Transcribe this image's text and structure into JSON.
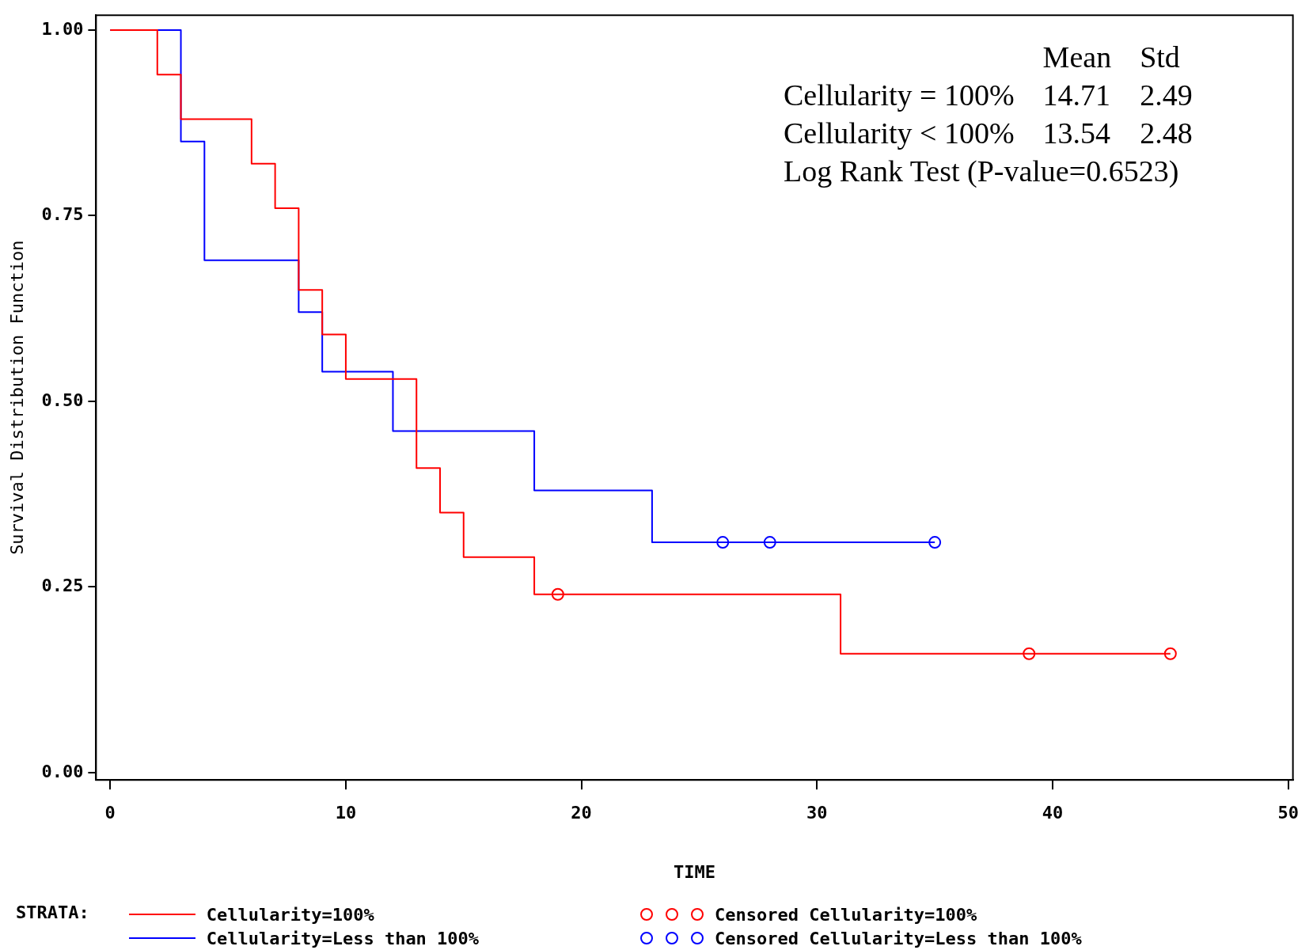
{
  "chart_data": {
    "type": "step",
    "xlabel": "TIME",
    "ylabel": "Survival Distribution Function",
    "legend_title": "STRATA:",
    "legend": "bottom",
    "grid": false,
    "xlim": [
      -0.6,
      50.2
    ],
    "xticks": [
      0,
      10,
      20,
      30,
      40,
      50
    ],
    "ylim": [
      -0.01,
      1.02
    ],
    "yticks": [
      {
        "value": 0,
        "label": "0.00"
      },
      {
        "value": 0.25,
        "label": "0.25"
      },
      {
        "value": 0.5,
        "label": "0.50"
      },
      {
        "value": 0.75,
        "label": "0.75"
      },
      {
        "value": 1,
        "label": "1.00"
      }
    ],
    "annotations": [
      "Mean",
      "Std",
      "Cellularity = 100%",
      "14.71",
      "2.49",
      "Cellularity < 100%",
      "13.54",
      "2.48",
      "Log Rank Test (P-value=0.6523)"
    ],
    "series": [
      {
        "name": "Cellularity=100%",
        "color": "#ff0000",
        "marker": "none",
        "x": [
          0,
          2,
          3,
          6,
          7,
          8,
          9,
          10,
          13,
          14,
          15,
          18,
          31,
          45
        ],
        "values": [
          1,
          0.94,
          0.88,
          0.82,
          0.76,
          0.65,
          0.59,
          0.53,
          0.41,
          0.35,
          0.29,
          0.24,
          0.16,
          0.16
        ]
      },
      {
        "name": "Cellularity=Less than 100%",
        "color": "#0000ff",
        "marker": "none",
        "x": [
          0,
          3,
          4,
          8,
          9,
          12,
          18,
          23,
          35
        ],
        "values": [
          1,
          0.85,
          0.69,
          0.62,
          0.54,
          0.46,
          0.38,
          0.31,
          0.31
        ]
      },
      {
        "name": "Censored Cellularity=100%",
        "type": "scatter",
        "color": "#ff0000",
        "marker": "circle",
        "x": [
          19,
          39,
          45
        ],
        "values": [
          0.24,
          0.16,
          0.16
        ]
      },
      {
        "name": "Censored Cellularity=Less than 100%",
        "type": "scatter",
        "color": "#0000ff",
        "marker": "circle",
        "x": [
          26,
          28,
          35
        ],
        "values": [
          0.31,
          0.31,
          0.31
        ]
      }
    ]
  }
}
